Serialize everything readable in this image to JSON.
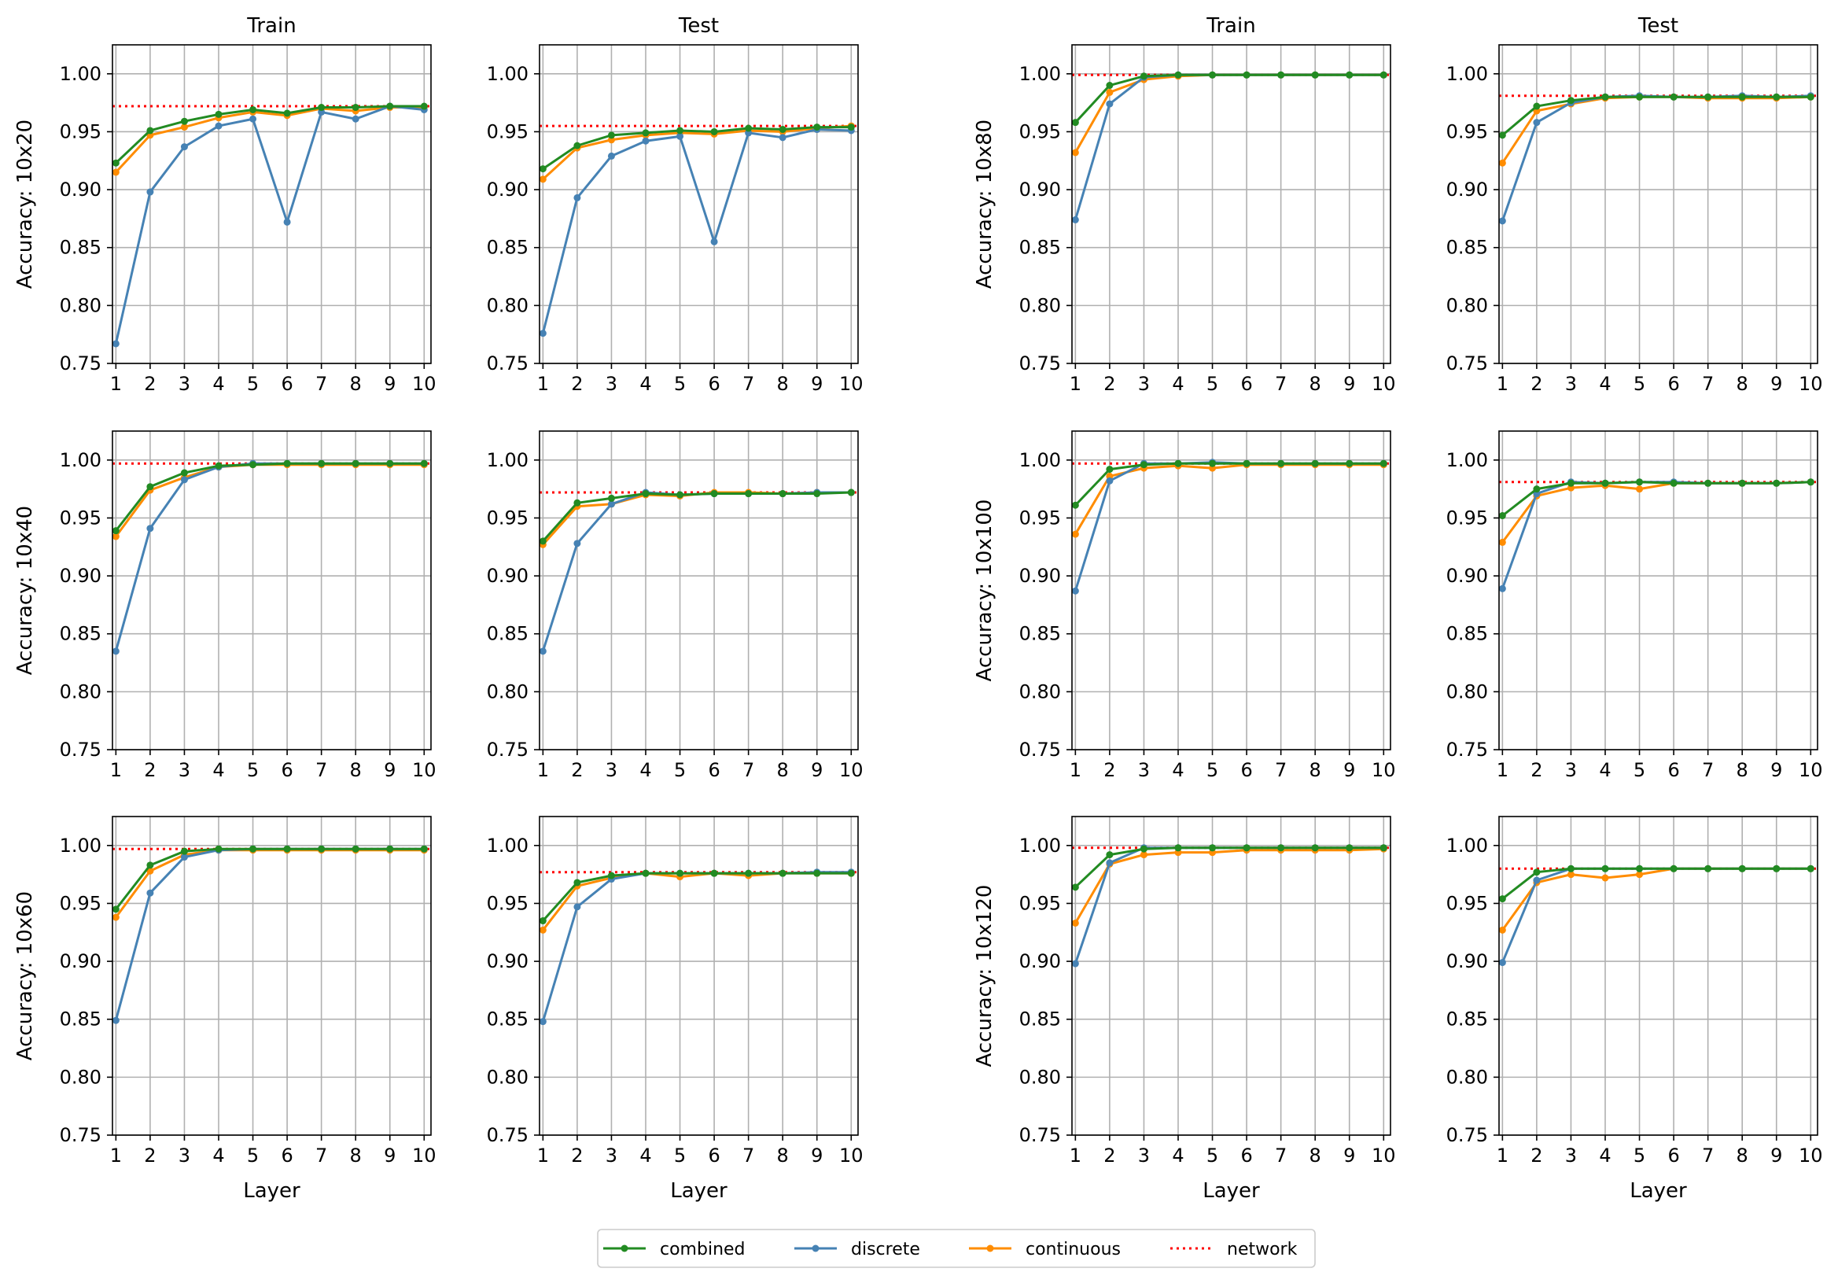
{
  "legend": {
    "items": [
      {
        "key": "combined",
        "label": "combined"
      },
      {
        "key": "discrete",
        "label": "discrete"
      },
      {
        "key": "continuous",
        "label": "continuous"
      },
      {
        "key": "network",
        "label": "network"
      }
    ]
  },
  "colors": {
    "combined": "#228b22",
    "discrete": "#4682b4",
    "continuous": "#ff8c00",
    "network": "#ff0000",
    "grid": "#b0b0b0",
    "axis": "#000000"
  },
  "chart_data": [
    {
      "type": "line",
      "title": "Train",
      "ylabel": "Accuracy: 10x20",
      "xlabel": "",
      "x": [
        1,
        2,
        3,
        4,
        5,
        6,
        7,
        8,
        9,
        10
      ],
      "xticklabels": [
        "1",
        "2",
        "3",
        "4",
        "5",
        "6",
        "7",
        "8",
        "9",
        "10"
      ],
      "ylim": [
        0.75,
        1.025
      ],
      "yticks": [
        0.75,
        0.8,
        0.85,
        0.9,
        0.95,
        1.0
      ],
      "yticklabels": [
        "0.75",
        "0.80",
        "0.85",
        "0.90",
        "0.95",
        "1.00"
      ],
      "grid": true,
      "network": 0.972,
      "series": [
        {
          "name": "combined",
          "values": [
            0.923,
            0.951,
            0.959,
            0.965,
            0.969,
            0.966,
            0.971,
            0.971,
            0.972,
            0.972
          ]
        },
        {
          "name": "discrete",
          "values": [
            0.767,
            0.898,
            0.937,
            0.955,
            0.961,
            0.872,
            0.967,
            0.961,
            0.972,
            0.969
          ]
        },
        {
          "name": "continuous",
          "values": [
            0.915,
            0.947,
            0.954,
            0.962,
            0.967,
            0.964,
            0.97,
            0.968,
            0.971,
            0.971
          ]
        }
      ]
    },
    {
      "type": "line",
      "title": "Test",
      "ylabel": "",
      "xlabel": "",
      "x": [
        1,
        2,
        3,
        4,
        5,
        6,
        7,
        8,
        9,
        10
      ],
      "xticklabels": [
        "1",
        "2",
        "3",
        "4",
        "5",
        "6",
        "7",
        "8",
        "9",
        "10"
      ],
      "ylim": [
        0.75,
        1.025
      ],
      "yticks": [
        0.75,
        0.8,
        0.85,
        0.9,
        0.95,
        1.0
      ],
      "yticklabels": [
        "0.75",
        "0.80",
        "0.85",
        "0.90",
        "0.95",
        "1.00"
      ],
      "grid": true,
      "network": 0.955,
      "series": [
        {
          "name": "combined",
          "values": [
            0.918,
            0.938,
            0.947,
            0.949,
            0.951,
            0.95,
            0.953,
            0.952,
            0.954,
            0.954
          ]
        },
        {
          "name": "discrete",
          "values": [
            0.776,
            0.893,
            0.929,
            0.942,
            0.946,
            0.855,
            0.949,
            0.945,
            0.952,
            0.951
          ]
        },
        {
          "name": "continuous",
          "values": [
            0.909,
            0.936,
            0.943,
            0.947,
            0.949,
            0.948,
            0.951,
            0.95,
            0.953,
            0.955
          ]
        }
      ]
    },
    {
      "type": "line",
      "title": "Train",
      "ylabel": "Accuracy: 10x80",
      "xlabel": "",
      "x": [
        1,
        2,
        3,
        4,
        5,
        6,
        7,
        8,
        9,
        10
      ],
      "xticklabels": [
        "1",
        "2",
        "3",
        "4",
        "5",
        "6",
        "7",
        "8",
        "9",
        "10"
      ],
      "ylim": [
        0.75,
        1.025
      ],
      "yticks": [
        0.75,
        0.8,
        0.85,
        0.9,
        0.95,
        1.0
      ],
      "yticklabels": [
        "0.75",
        "0.80",
        "0.85",
        "0.90",
        "0.95",
        "1.00"
      ],
      "grid": true,
      "network": 0.999,
      "series": [
        {
          "name": "combined",
          "values": [
            0.958,
            0.99,
            0.998,
            0.999,
            0.999,
            0.999,
            0.999,
            0.999,
            0.999,
            0.999
          ]
        },
        {
          "name": "discrete",
          "values": [
            0.874,
            0.974,
            0.997,
            0.999,
            0.999,
            0.999,
            0.999,
            0.999,
            0.999,
            0.999
          ]
        },
        {
          "name": "continuous",
          "values": [
            0.932,
            0.984,
            0.995,
            0.998,
            0.999,
            0.999,
            0.999,
            0.999,
            0.999,
            0.999
          ]
        }
      ]
    },
    {
      "type": "line",
      "title": "Test",
      "ylabel": "",
      "xlabel": "",
      "x": [
        1,
        2,
        3,
        4,
        5,
        6,
        7,
        8,
        9,
        10
      ],
      "xticklabels": [
        "1",
        "2",
        "3",
        "4",
        "5",
        "6",
        "7",
        "8",
        "9",
        "10"
      ],
      "ylim": [
        0.75,
        1.025
      ],
      "yticks": [
        0.75,
        0.8,
        0.85,
        0.9,
        0.95,
        1.0
      ],
      "yticklabels": [
        "0.75",
        "0.80",
        "0.85",
        "0.90",
        "0.95",
        "1.00"
      ],
      "grid": true,
      "network": 0.981,
      "series": [
        {
          "name": "combined",
          "values": [
            0.947,
            0.972,
            0.977,
            0.98,
            0.98,
            0.98,
            0.98,
            0.98,
            0.98,
            0.98
          ]
        },
        {
          "name": "discrete",
          "values": [
            0.873,
            0.958,
            0.975,
            0.98,
            0.981,
            0.98,
            0.98,
            0.981,
            0.98,
            0.981
          ]
        },
        {
          "name": "continuous",
          "values": [
            0.923,
            0.968,
            0.974,
            0.979,
            0.98,
            0.98,
            0.979,
            0.979,
            0.979,
            0.98
          ]
        }
      ]
    },
    {
      "type": "line",
      "title": "",
      "ylabel": "Accuracy: 10x40",
      "xlabel": "",
      "x": [
        1,
        2,
        3,
        4,
        5,
        6,
        7,
        8,
        9,
        10
      ],
      "xticklabels": [
        "1",
        "2",
        "3",
        "4",
        "5",
        "6",
        "7",
        "8",
        "9",
        "10"
      ],
      "ylim": [
        0.75,
        1.025
      ],
      "yticks": [
        0.75,
        0.8,
        0.85,
        0.9,
        0.95,
        1.0
      ],
      "yticklabels": [
        "0.75",
        "0.80",
        "0.85",
        "0.90",
        "0.95",
        "1.00"
      ],
      "grid": true,
      "network": 0.997,
      "series": [
        {
          "name": "combined",
          "values": [
            0.939,
            0.977,
            0.989,
            0.995,
            0.996,
            0.997,
            0.997,
            0.997,
            0.997,
            0.997
          ]
        },
        {
          "name": "discrete",
          "values": [
            0.835,
            0.941,
            0.983,
            0.994,
            0.997,
            0.997,
            0.997,
            0.997,
            0.997,
            0.997
          ]
        },
        {
          "name": "continuous",
          "values": [
            0.934,
            0.974,
            0.985,
            0.994,
            0.996,
            0.996,
            0.996,
            0.996,
            0.996,
            0.996
          ]
        }
      ]
    },
    {
      "type": "line",
      "title": "",
      "ylabel": "",
      "xlabel": "",
      "x": [
        1,
        2,
        3,
        4,
        5,
        6,
        7,
        8,
        9,
        10
      ],
      "xticklabels": [
        "1",
        "2",
        "3",
        "4",
        "5",
        "6",
        "7",
        "8",
        "9",
        "10"
      ],
      "ylim": [
        0.75,
        1.025
      ],
      "yticks": [
        0.75,
        0.8,
        0.85,
        0.9,
        0.95,
        1.0
      ],
      "yticklabels": [
        "0.75",
        "0.80",
        "0.85",
        "0.90",
        "0.95",
        "1.00"
      ],
      "grid": true,
      "network": 0.972,
      "series": [
        {
          "name": "combined",
          "values": [
            0.93,
            0.963,
            0.967,
            0.971,
            0.97,
            0.971,
            0.971,
            0.971,
            0.971,
            0.972
          ]
        },
        {
          "name": "discrete",
          "values": [
            0.835,
            0.928,
            0.962,
            0.972,
            0.97,
            0.971,
            0.971,
            0.971,
            0.972,
            0.972
          ]
        },
        {
          "name": "continuous",
          "values": [
            0.927,
            0.96,
            0.962,
            0.97,
            0.969,
            0.972,
            0.972,
            0.971,
            0.972,
            0.972
          ]
        }
      ]
    },
    {
      "type": "line",
      "title": "",
      "ylabel": "Accuracy: 10x100",
      "xlabel": "",
      "x": [
        1,
        2,
        3,
        4,
        5,
        6,
        7,
        8,
        9,
        10
      ],
      "xticklabels": [
        "1",
        "2",
        "3",
        "4",
        "5",
        "6",
        "7",
        "8",
        "9",
        "10"
      ],
      "ylim": [
        0.75,
        1.025
      ],
      "yticks": [
        0.75,
        0.8,
        0.85,
        0.9,
        0.95,
        1.0
      ],
      "yticklabels": [
        "0.75",
        "0.80",
        "0.85",
        "0.90",
        "0.95",
        "1.00"
      ],
      "grid": true,
      "network": 0.997,
      "series": [
        {
          "name": "combined",
          "values": [
            0.961,
            0.992,
            0.996,
            0.997,
            0.997,
            0.997,
            0.997,
            0.997,
            0.997,
            0.997
          ]
        },
        {
          "name": "discrete",
          "values": [
            0.887,
            0.982,
            0.997,
            0.997,
            0.998,
            0.997,
            0.997,
            0.997,
            0.997,
            0.997
          ]
        },
        {
          "name": "continuous",
          "values": [
            0.936,
            0.986,
            0.993,
            0.995,
            0.993,
            0.996,
            0.996,
            0.996,
            0.996,
            0.996
          ]
        }
      ]
    },
    {
      "type": "line",
      "title": "",
      "ylabel": "",
      "xlabel": "",
      "x": [
        1,
        2,
        3,
        4,
        5,
        6,
        7,
        8,
        9,
        10
      ],
      "xticklabels": [
        "1",
        "2",
        "3",
        "4",
        "5",
        "6",
        "7",
        "8",
        "9",
        "10"
      ],
      "ylim": [
        0.75,
        1.025
      ],
      "yticks": [
        0.75,
        0.8,
        0.85,
        0.9,
        0.95,
        1.0
      ],
      "yticklabels": [
        "0.75",
        "0.80",
        "0.85",
        "0.90",
        "0.95",
        "1.00"
      ],
      "grid": true,
      "network": 0.981,
      "series": [
        {
          "name": "combined",
          "values": [
            0.952,
            0.975,
            0.98,
            0.98,
            0.981,
            0.98,
            0.98,
            0.98,
            0.98,
            0.981
          ]
        },
        {
          "name": "discrete",
          "values": [
            0.889,
            0.971,
            0.981,
            0.98,
            0.981,
            0.981,
            0.98,
            0.98,
            0.98,
            0.981
          ]
        },
        {
          "name": "continuous",
          "values": [
            0.929,
            0.969,
            0.976,
            0.978,
            0.975,
            0.98,
            0.98,
            0.98,
            0.98,
            0.981
          ]
        }
      ]
    },
    {
      "type": "line",
      "title": "",
      "ylabel": "Accuracy: 10x60",
      "xlabel": "Layer",
      "x": [
        1,
        2,
        3,
        4,
        5,
        6,
        7,
        8,
        9,
        10
      ],
      "xticklabels": [
        "1",
        "2",
        "3",
        "4",
        "5",
        "6",
        "7",
        "8",
        "9",
        "10"
      ],
      "ylim": [
        0.75,
        1.025
      ],
      "yticks": [
        0.75,
        0.8,
        0.85,
        0.9,
        0.95,
        1.0
      ],
      "yticklabels": [
        "0.75",
        "0.80",
        "0.85",
        "0.90",
        "0.95",
        "1.00"
      ],
      "grid": true,
      "network": 0.997,
      "series": [
        {
          "name": "combined",
          "values": [
            0.945,
            0.983,
            0.995,
            0.997,
            0.997,
            0.997,
            0.997,
            0.997,
            0.997,
            0.997
          ]
        },
        {
          "name": "discrete",
          "values": [
            0.849,
            0.959,
            0.99,
            0.996,
            0.997,
            0.997,
            0.997,
            0.997,
            0.997,
            0.997
          ]
        },
        {
          "name": "continuous",
          "values": [
            0.938,
            0.978,
            0.992,
            0.996,
            0.996,
            0.996,
            0.996,
            0.996,
            0.996,
            0.996
          ]
        }
      ]
    },
    {
      "type": "line",
      "title": "",
      "ylabel": "",
      "xlabel": "Layer",
      "x": [
        1,
        2,
        3,
        4,
        5,
        6,
        7,
        8,
        9,
        10
      ],
      "xticklabels": [
        "1",
        "2",
        "3",
        "4",
        "5",
        "6",
        "7",
        "8",
        "9",
        "10"
      ],
      "ylim": [
        0.75,
        1.025
      ],
      "yticks": [
        0.75,
        0.8,
        0.85,
        0.9,
        0.95,
        1.0
      ],
      "yticklabels": [
        "0.75",
        "0.80",
        "0.85",
        "0.90",
        "0.95",
        "1.00"
      ],
      "grid": true,
      "network": 0.977,
      "series": [
        {
          "name": "combined",
          "values": [
            0.935,
            0.968,
            0.974,
            0.976,
            0.976,
            0.976,
            0.976,
            0.976,
            0.976,
            0.976
          ]
        },
        {
          "name": "discrete",
          "values": [
            0.848,
            0.947,
            0.971,
            0.976,
            0.976,
            0.976,
            0.976,
            0.976,
            0.977,
            0.977
          ]
        },
        {
          "name": "continuous",
          "values": [
            0.927,
            0.965,
            0.972,
            0.976,
            0.973,
            0.976,
            0.974,
            0.976,
            0.976,
            0.976
          ]
        }
      ]
    },
    {
      "type": "line",
      "title": "",
      "ylabel": "Accuracy: 10x120",
      "xlabel": "Layer",
      "x": [
        1,
        2,
        3,
        4,
        5,
        6,
        7,
        8,
        9,
        10
      ],
      "xticklabels": [
        "1",
        "2",
        "3",
        "4",
        "5",
        "6",
        "7",
        "8",
        "9",
        "10"
      ],
      "ylim": [
        0.75,
        1.025
      ],
      "yticks": [
        0.75,
        0.8,
        0.85,
        0.9,
        0.95,
        1.0
      ],
      "yticklabels": [
        "0.75",
        "0.80",
        "0.85",
        "0.90",
        "0.95",
        "1.00"
      ],
      "grid": true,
      "network": 0.998,
      "series": [
        {
          "name": "combined",
          "values": [
            0.964,
            0.992,
            0.997,
            0.998,
            0.998,
            0.998,
            0.998,
            0.998,
            0.998,
            0.998
          ]
        },
        {
          "name": "discrete",
          "values": [
            0.898,
            0.985,
            0.998,
            0.998,
            0.998,
            0.998,
            0.998,
            0.998,
            0.998,
            0.998
          ]
        },
        {
          "name": "continuous",
          "values": [
            0.933,
            0.984,
            0.992,
            0.994,
            0.994,
            0.996,
            0.996,
            0.996,
            0.996,
            0.997
          ]
        }
      ]
    },
    {
      "type": "line",
      "title": "",
      "ylabel": "",
      "xlabel": "Layer",
      "x": [
        1,
        2,
        3,
        4,
        5,
        6,
        7,
        8,
        9,
        10
      ],
      "xticklabels": [
        "1",
        "2",
        "3",
        "4",
        "5",
        "6",
        "7",
        "8",
        "9",
        "10"
      ],
      "ylim": [
        0.75,
        1.025
      ],
      "yticks": [
        0.75,
        0.8,
        0.85,
        0.9,
        0.95,
        1.0
      ],
      "yticklabels": [
        "0.75",
        "0.80",
        "0.85",
        "0.90",
        "0.95",
        "1.00"
      ],
      "grid": true,
      "network": 0.98,
      "series": [
        {
          "name": "combined",
          "values": [
            0.954,
            0.977,
            0.98,
            0.98,
            0.98,
            0.98,
            0.98,
            0.98,
            0.98,
            0.98
          ]
        },
        {
          "name": "discrete",
          "values": [
            0.899,
            0.97,
            0.98,
            0.98,
            0.98,
            0.98,
            0.98,
            0.98,
            0.98,
            0.98
          ]
        },
        {
          "name": "continuous",
          "values": [
            0.927,
            0.968,
            0.975,
            0.972,
            0.975,
            0.98,
            0.98,
            0.98,
            0.98,
            0.98
          ]
        }
      ]
    }
  ]
}
